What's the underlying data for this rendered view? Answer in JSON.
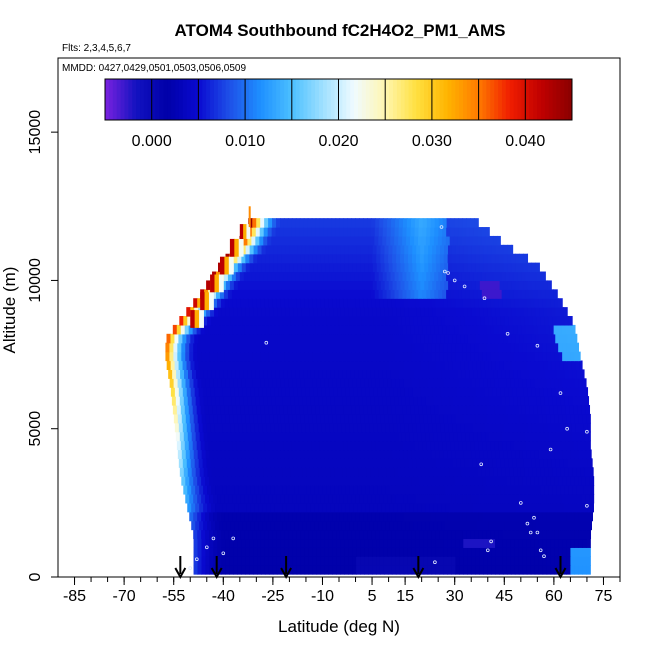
{
  "chart_data": {
    "type": "heatmap",
    "title": "ATOM4 Southbound fC2H4O2_PM1_AMS",
    "flights_note": "Flts: 2,3,4,5,6,7",
    "dates_note": "MMDD: 0427,0429,0501,0503,0506,0509",
    "xlabel": "Latitude (deg N)",
    "ylabel": "Altitude (m)",
    "xlim": [
      -90,
      80
    ],
    "ylim": [
      0,
      17500
    ],
    "x_ticks": [
      -85,
      -70,
      -55,
      -40,
      -25,
      -10,
      5,
      15,
      30,
      45,
      60,
      75
    ],
    "x_tick_labels": [
      "-85",
      "-70",
      "-55",
      "-40",
      "-25",
      "-10",
      "5",
      "15",
      "30",
      "45",
      "60",
      "75"
    ],
    "y_ticks": [
      0,
      5000,
      10000,
      15000
    ],
    "y_tick_labels": [
      "0",
      "5000",
      "10000",
      "15000"
    ],
    "colorbar": {
      "range": [
        -0.005,
        0.045
      ],
      "ticks": [
        0.0,
        0.01,
        0.02,
        0.03,
        0.04
      ],
      "tick_labels": [
        "0.000",
        "0.010",
        "0.020",
        "0.030",
        "0.040"
      ],
      "colors": [
        "#7a22e0",
        "#1212c0",
        "#0000a8",
        "#0a0ad0",
        "#1e50e8",
        "#1e90ff",
        "#4cc0ff",
        "#9fe0ff",
        "#f0fbff",
        "#fff6b0",
        "#ffe040",
        "#ffb400",
        "#ff7a00",
        "#f01e00",
        "#c00000",
        "#8a0000"
      ]
    },
    "profile_edges": {
      "altitudes": [
        250,
        1250,
        2250,
        3250,
        4250,
        5250,
        6250,
        7250,
        7850,
        8400,
        9400,
        10400,
        11000,
        11900
      ],
      "left_lat": [
        -49,
        -49,
        -51,
        -53,
        -54,
        -55,
        -56,
        -57.5,
        -57.5,
        -54,
        -47,
        -41,
        -36,
        -32
      ],
      "right_lat": [
        71,
        71,
        72,
        72,
        71,
        71,
        70,
        68,
        67,
        66,
        61,
        55,
        46,
        36
      ]
    },
    "annotations": {
      "flight_arrows_lat": [
        -53,
        -42,
        -21,
        19,
        62
      ]
    }
  }
}
